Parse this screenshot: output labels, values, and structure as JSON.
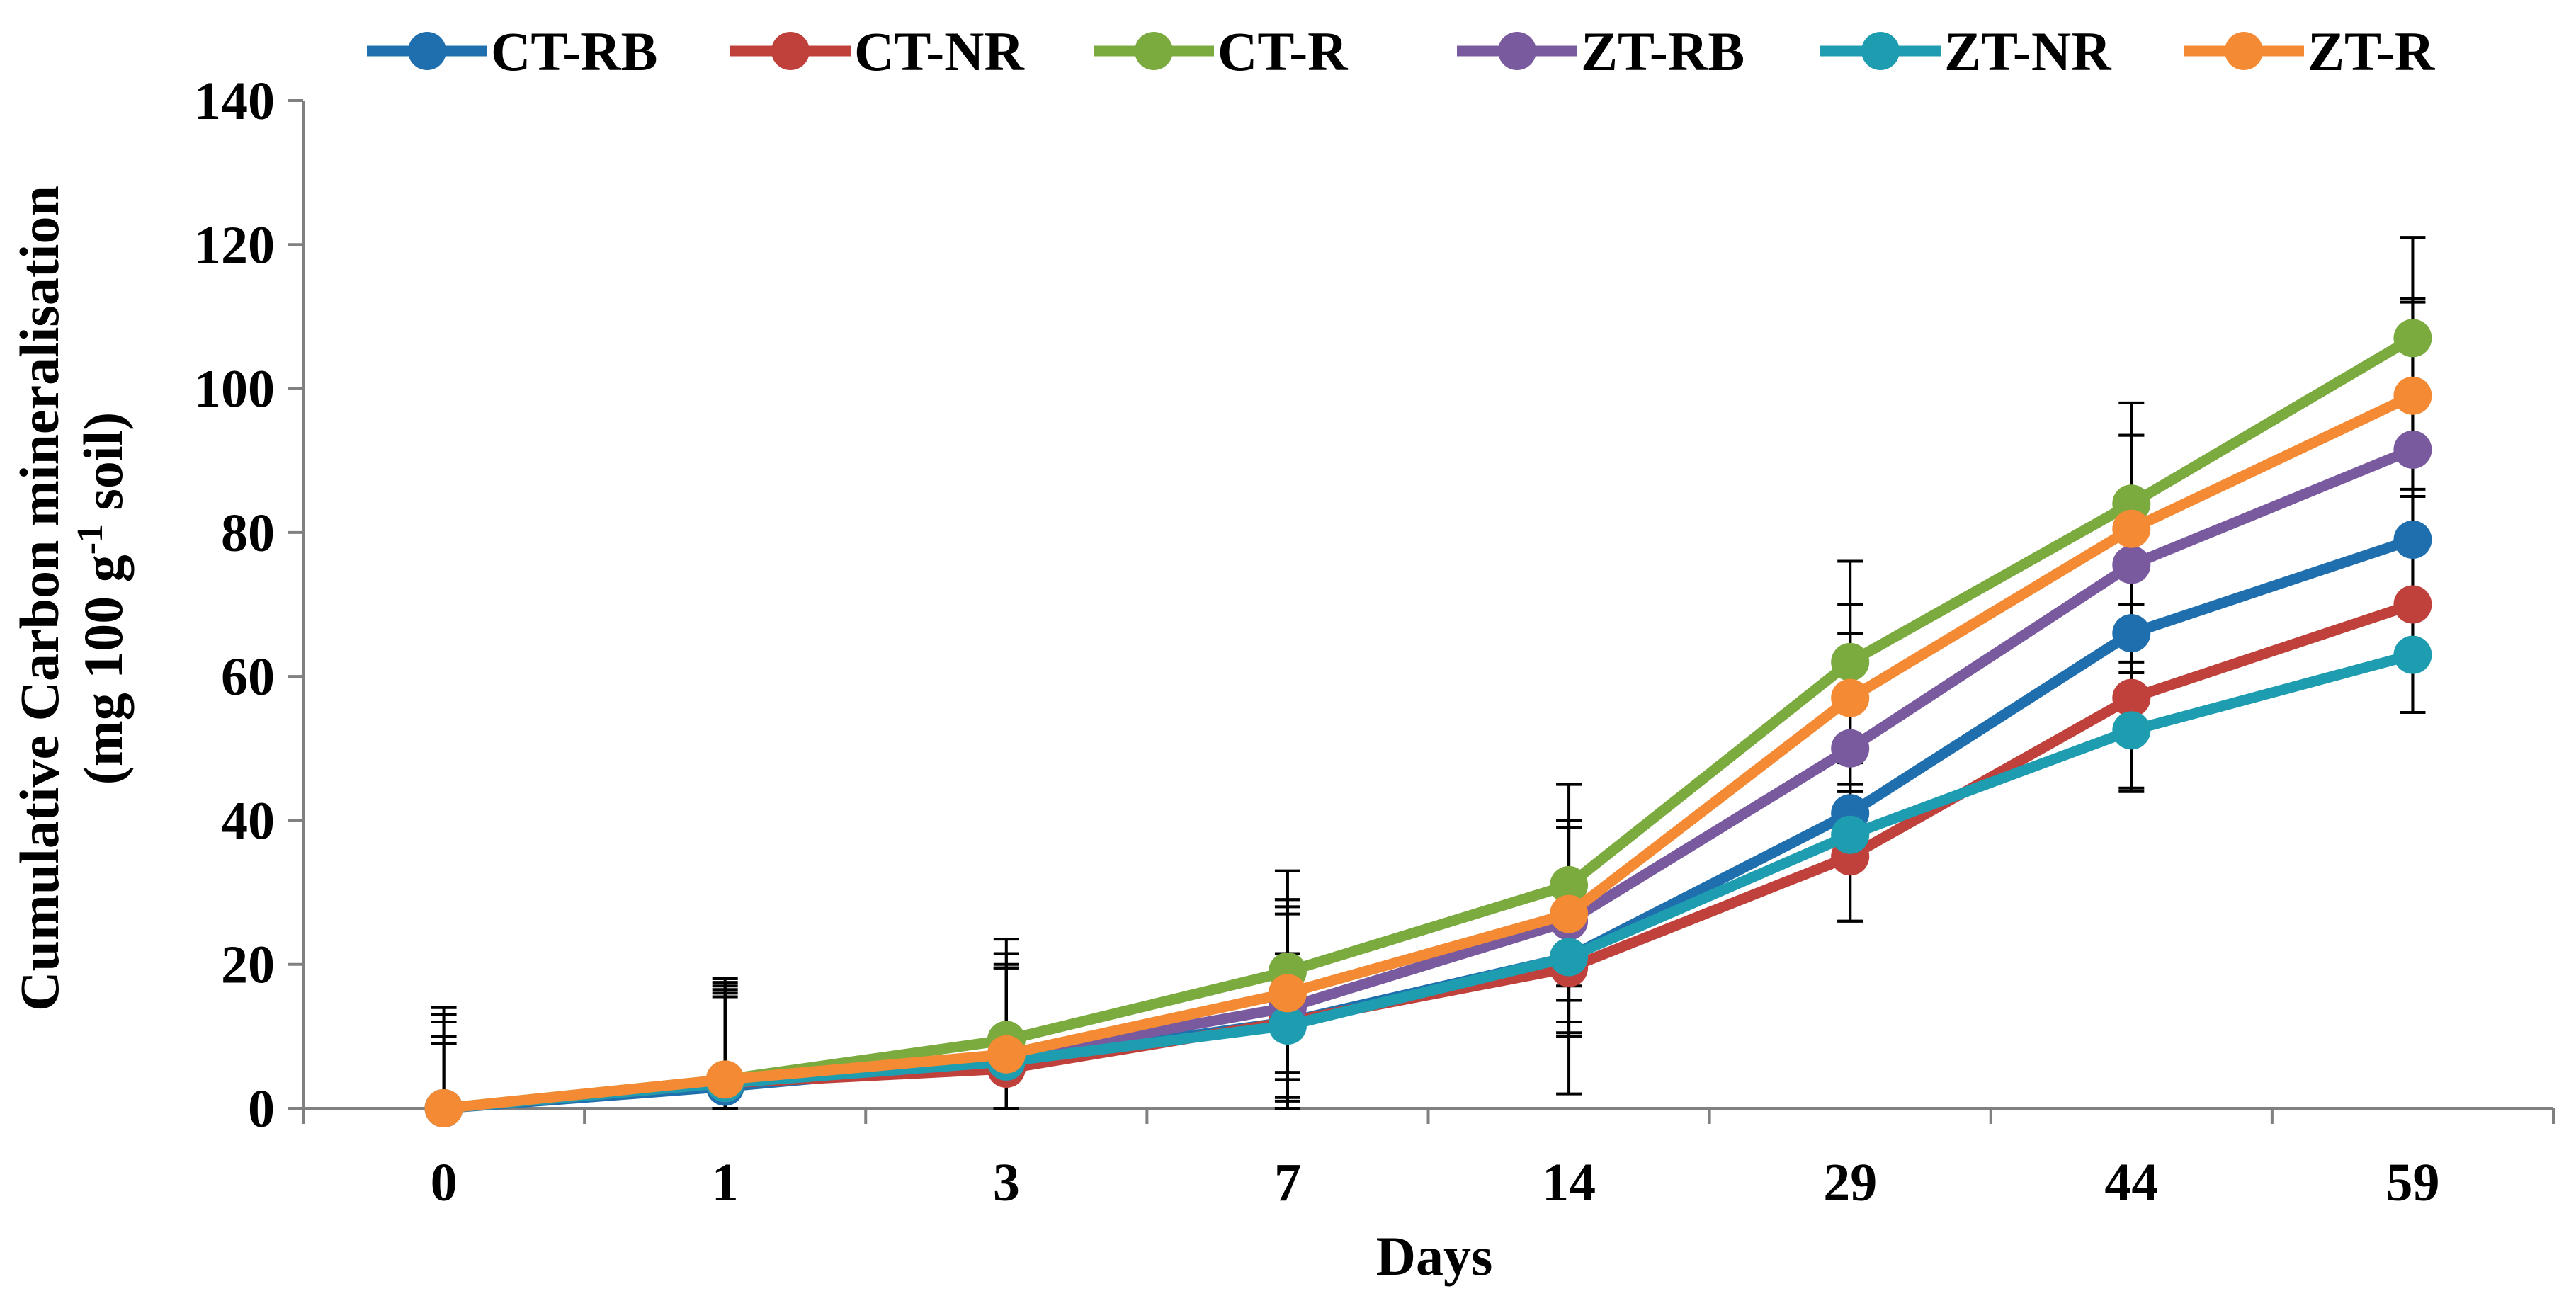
{
  "chart_data": {
    "type": "line",
    "title": "",
    "xlabel": "Days",
    "ylabel_line1": "Cumulative Carbon mineralisation",
    "ylabel_line2_prefix": "(mg 100 g",
    "ylabel_line2_sup": "-1",
    "ylabel_line2_suffix": " soil)",
    "categories": [
      "0",
      "1",
      "3",
      "7",
      "14",
      "29",
      "44",
      "59"
    ],
    "ylim": [
      0,
      140
    ],
    "yticks": [
      0,
      20,
      40,
      60,
      80,
      100,
      120,
      140
    ],
    "legend_position": "top",
    "grid": false,
    "series": [
      {
        "name": "CT-RB",
        "color": "#1F6FAE",
        "values": [
          0,
          3,
          6.5,
          12,
          21,
          41,
          66,
          79
        ],
        "errors": [
          9,
          14,
          15,
          17,
          19,
          4,
          4,
          0
        ]
      },
      {
        "name": "CT-NR",
        "color": "#C0413B",
        "values": [
          0,
          3.5,
          5.5,
          12,
          19.5,
          35,
          57,
          70
        ],
        "errors": [
          9,
          13,
          14,
          17,
          9,
          9,
          13,
          15
        ]
      },
      {
        "name": "CT-R",
        "color": "#7BAA3E",
        "values": [
          0,
          4,
          9.5,
          19,
          31,
          62,
          84,
          107
        ],
        "errors": [
          14,
          14,
          14,
          14,
          14,
          14,
          14,
          14
        ]
      },
      {
        "name": "ZT-RB",
        "color": "#7A5A9E",
        "values": [
          0,
          3.5,
          7,
          14,
          26,
          50,
          75.5,
          91.5
        ],
        "errors": [
          13,
          14,
          13,
          13,
          14,
          16,
          18,
          21
        ]
      },
      {
        "name": "ZT-NR",
        "color": "#1E9DB0",
        "values": [
          0,
          3.5,
          6.5,
          11.5,
          21,
          38,
          52.5,
          63
        ],
        "errors": [
          12,
          12,
          13,
          10,
          11,
          12,
          8,
          8
        ]
      },
      {
        "name": "ZT-R",
        "color": "#F58A34",
        "values": [
          0,
          4,
          7.5,
          16,
          27,
          57,
          80.5,
          99
        ],
        "errors": [
          10,
          12,
          12,
          12,
          12,
          13,
          13,
          13
        ]
      }
    ]
  }
}
